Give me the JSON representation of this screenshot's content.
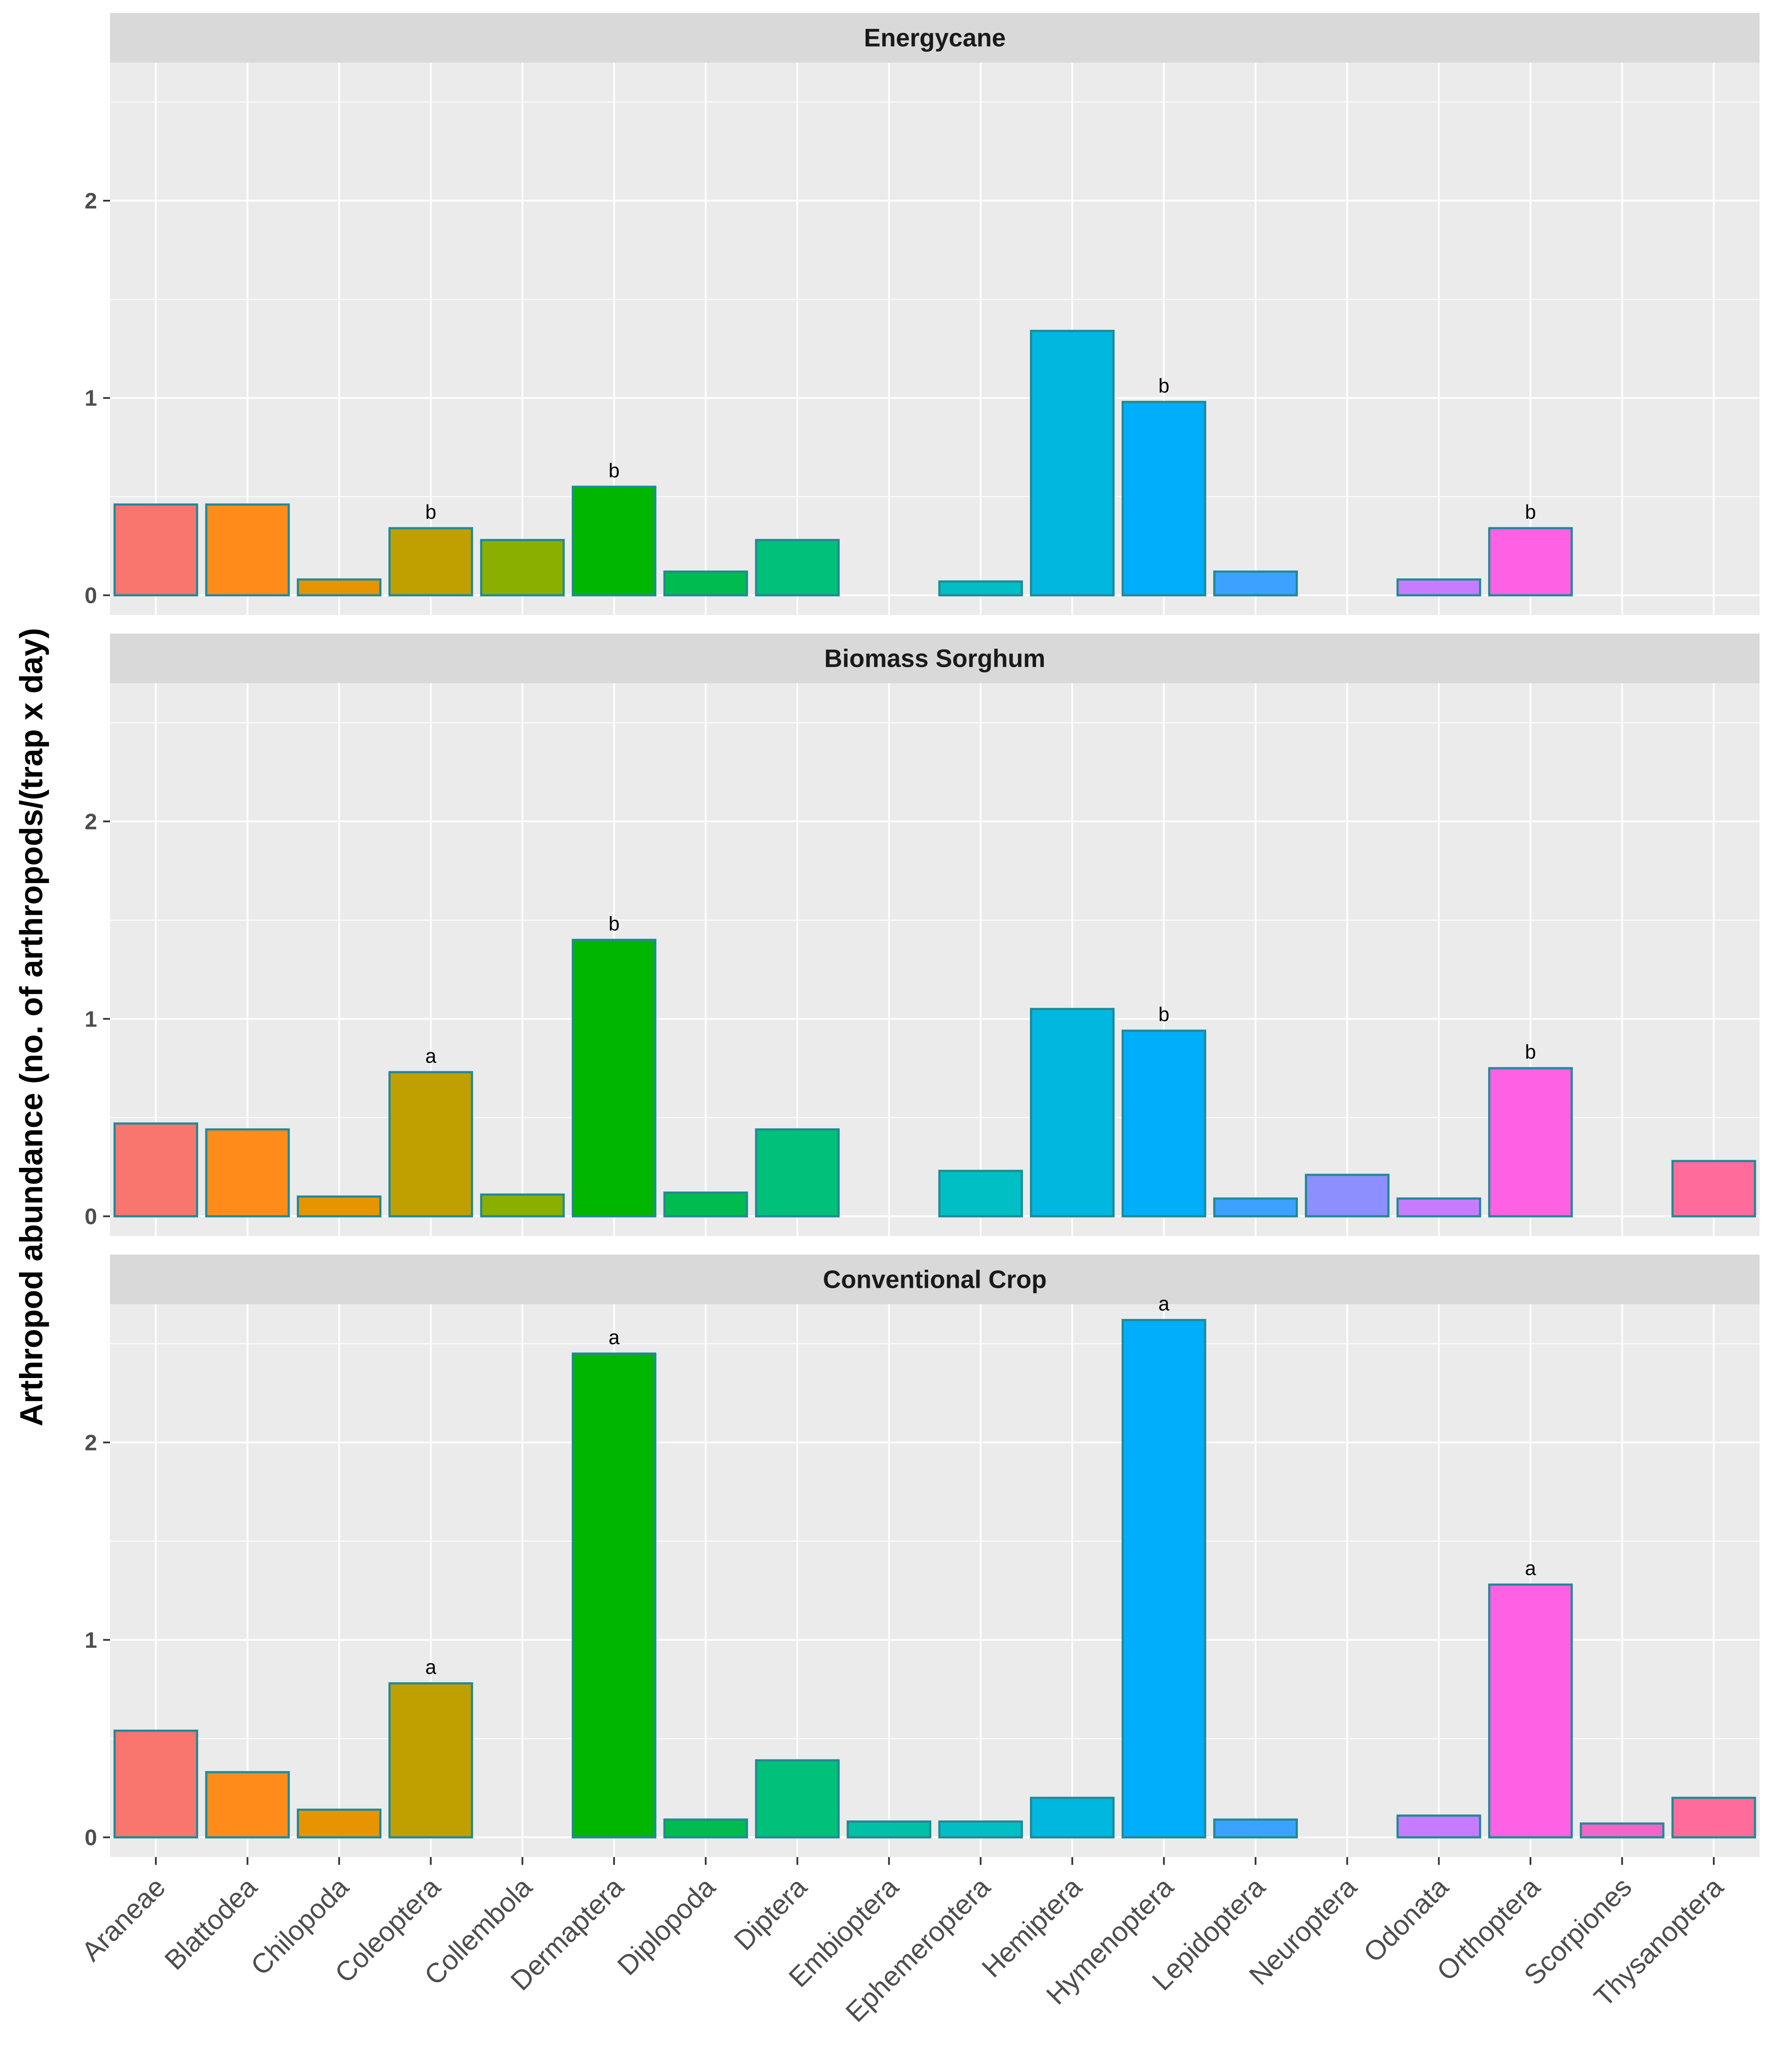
{
  "chart_data": {
    "type": "bar",
    "ylabel": "Arthropod abundance (no. of arthropods/(trap x day)",
    "xlabel": "",
    "ylim": [
      -0.1,
      2.7
    ],
    "yticks": [
      0,
      1,
      2
    ],
    "categories": [
      "Araneae",
      "Blattodea",
      "Chilopoda",
      "Coleoptera",
      "Collembola",
      "Dermaptera",
      "Diplopoda",
      "Diptera",
      "Embioptera",
      "Ephemeroptera",
      "Hemiptera",
      "Hymenoptera",
      "Lepidoptera",
      "Neuroptera",
      "Odonata",
      "Orthoptera",
      "Scorpiones",
      "Thysanoptera"
    ],
    "colors": [
      "#F8766D",
      "#FF8C1A",
      "#E69500",
      "#C09F00",
      "#8BAF00",
      "#00B600",
      "#00BB4E",
      "#00C07A",
      "#00C1A5",
      "#00BFC4",
      "#00B7E0",
      "#00AEFA",
      "#3BA3FF",
      "#8D8EFF",
      "#C77CFF",
      "#FF61E4",
      "#F563C8",
      "#FF6C9B"
    ],
    "bar_outline": "#1F8A96",
    "panels": [
      {
        "title": "Energycane",
        "values": [
          0.46,
          0.46,
          0.08,
          0.34,
          0.28,
          0.55,
          0.12,
          0.28,
          0,
          0.07,
          1.34,
          0.98,
          0.12,
          0,
          0.08,
          0.34,
          0,
          0
        ],
        "letters": {
          "Coleoptera": "b",
          "Dermaptera": "b",
          "Hymenoptera": "b",
          "Orthoptera": "b"
        }
      },
      {
        "title": "Biomass Sorghum",
        "values": [
          0.47,
          0.44,
          0.1,
          0.73,
          0.11,
          1.4,
          0.12,
          0.44,
          0,
          0.23,
          1.05,
          0.94,
          0.09,
          0.21,
          0.09,
          0.75,
          0,
          0.28
        ],
        "letters": {
          "Coleoptera": "a",
          "Dermaptera": "b",
          "Hymenoptera": "b",
          "Orthoptera": "b"
        }
      },
      {
        "title": "Conventional Crop",
        "values": [
          0.54,
          0.33,
          0.14,
          0.78,
          0,
          2.45,
          0.09,
          0.39,
          0.08,
          0.08,
          0.2,
          2.62,
          0.09,
          0,
          0.11,
          1.28,
          0.07,
          0.2
        ],
        "letters": {
          "Coleoptera": "a",
          "Dermaptera": "a",
          "Hymenoptera": "a",
          "Orthoptera": "a"
        }
      }
    ]
  }
}
